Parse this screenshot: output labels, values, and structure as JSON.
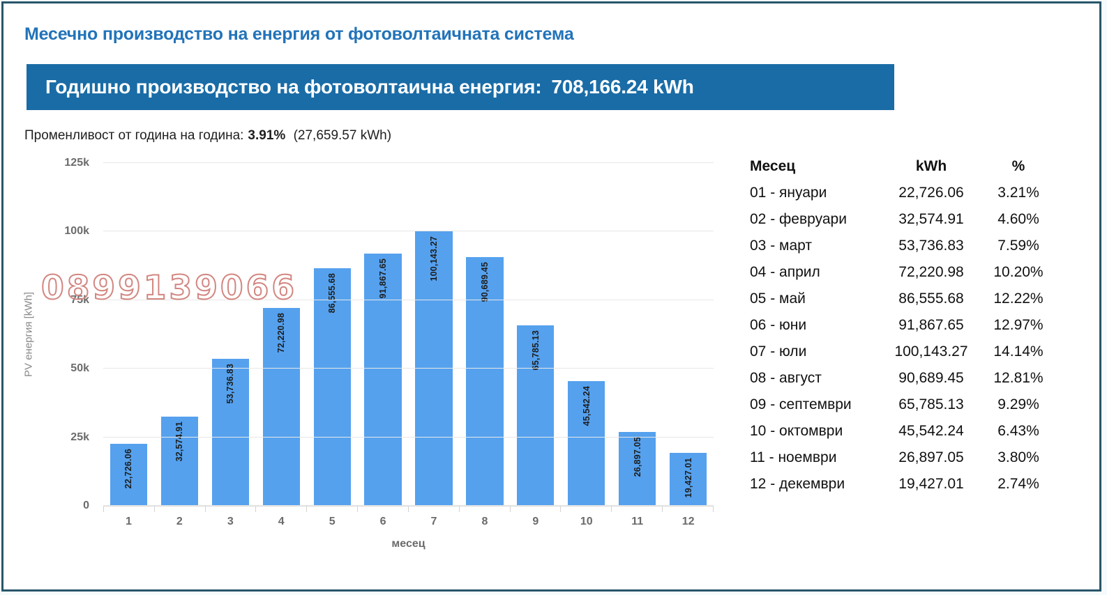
{
  "colors": {
    "title_text": "#2273b9",
    "banner_bg": "#1a6ca6",
    "banner_text": "#ffffff",
    "bar_fill": "#55a1ee",
    "watermark": "#d28680",
    "page_border": "#27566a"
  },
  "header": {
    "title": "Месечно производство на енергия от фотоволтаичната система"
  },
  "banner": {
    "label": "Годишно производство на фотоволтаична енергия:",
    "value": "708,166.24 kWh"
  },
  "variability": {
    "label": "Променливост от година на година:",
    "value": "3.91%",
    "detail": "(27,659.57 kWh)"
  },
  "watermark": "0899139066",
  "chart_data": {
    "type": "bar",
    "title": "",
    "xlabel": "месец",
    "ylabel": "PV енергия [kWh]",
    "ylim": [
      0,
      125000
    ],
    "grid": true,
    "legend": "none",
    "categories": [
      "1",
      "2",
      "3",
      "4",
      "5",
      "6",
      "7",
      "8",
      "9",
      "10",
      "11",
      "12"
    ],
    "values": [
      22726.06,
      32574.91,
      53736.83,
      72220.98,
      86555.68,
      91867.65,
      100143.27,
      90689.45,
      65785.13,
      45542.24,
      26897.05,
      19427.01
    ],
    "bar_labels": [
      "22,726.06",
      "32,574.91",
      "53,736.83",
      "72,220.98",
      "86,555.68",
      "91,867.65",
      "100,143.27",
      "90,689.45",
      "65,785.13",
      "45,542.24",
      "26,897.05",
      "19,427.01"
    ],
    "yticks": [
      {
        "label": "0",
        "value": 0
      },
      {
        "label": "25k",
        "value": 25000
      },
      {
        "label": "50k",
        "value": 50000
      },
      {
        "label": "75k",
        "value": 75000
      },
      {
        "label": "100k",
        "value": 100000
      },
      {
        "label": "125k",
        "value": 125000
      }
    ]
  },
  "table": {
    "headers": [
      "Месец",
      "kWh",
      "%"
    ],
    "rows": [
      {
        "month": "01 - януари",
        "kwh": "22,726.06",
        "pct": "3.21%"
      },
      {
        "month": "02 - февруари",
        "kwh": "32,574.91",
        "pct": "4.60%"
      },
      {
        "month": "03 - март",
        "kwh": "53,736.83",
        "pct": "7.59%"
      },
      {
        "month": "04 - април",
        "kwh": "72,220.98",
        "pct": "10.20%"
      },
      {
        "month": "05 - май",
        "kwh": "86,555.68",
        "pct": "12.22%"
      },
      {
        "month": "06 - юни",
        "kwh": "91,867.65",
        "pct": "12.97%"
      },
      {
        "month": "07 - юли",
        "kwh": "100,143.27",
        "pct": "14.14%"
      },
      {
        "month": "08 - август",
        "kwh": "90,689.45",
        "pct": "12.81%"
      },
      {
        "month": "09 - септември",
        "kwh": "65,785.13",
        "pct": "9.29%"
      },
      {
        "month": "10 - октомври",
        "kwh": "45,542.24",
        "pct": "6.43%"
      },
      {
        "month": "11 - ноември",
        "kwh": "26,897.05",
        "pct": "3.80%"
      },
      {
        "month": "12 - декември",
        "kwh": "19,427.01",
        "pct": "2.74%"
      }
    ]
  }
}
